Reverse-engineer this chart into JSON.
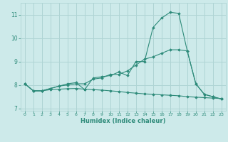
{
  "xlabel": "Humidex (Indice chaleur)",
  "x_values": [
    0,
    1,
    2,
    3,
    4,
    5,
    6,
    7,
    8,
    9,
    10,
    11,
    12,
    13,
    14,
    15,
    16,
    17,
    18,
    19,
    20,
    21,
    22,
    23
  ],
  "line1": [
    8.05,
    7.75,
    7.75,
    7.85,
    7.95,
    8.05,
    8.1,
    7.8,
    8.3,
    8.35,
    8.4,
    8.55,
    8.4,
    9.0,
    9.0,
    10.45,
    10.85,
    11.1,
    11.05,
    9.45,
    8.05,
    7.6,
    7.5,
    7.4
  ],
  "line2": [
    8.05,
    7.75,
    7.75,
    7.85,
    7.95,
    8.0,
    8.05,
    8.05,
    8.25,
    8.3,
    8.45,
    8.45,
    8.6,
    8.85,
    9.1,
    9.2,
    9.35,
    9.5,
    9.5,
    9.45,
    8.05,
    7.6,
    7.5,
    7.4
  ],
  "line3": [
    8.05,
    7.75,
    7.75,
    7.8,
    7.82,
    7.84,
    7.85,
    7.82,
    7.8,
    7.78,
    7.75,
    7.72,
    7.68,
    7.65,
    7.62,
    7.6,
    7.58,
    7.56,
    7.54,
    7.5,
    7.48,
    7.46,
    7.44,
    7.42
  ],
  "color": "#2e8b7a",
  "bg_color": "#cdeaea",
  "grid_color": "#afd4d4",
  "ylim": [
    6.9,
    11.5
  ],
  "yticks": [
    7,
    8,
    9,
    10,
    11
  ],
  "xticks": [
    0,
    1,
    2,
    3,
    4,
    5,
    6,
    7,
    8,
    9,
    10,
    11,
    12,
    13,
    14,
    15,
    16,
    17,
    18,
    19,
    20,
    21,
    22,
    23
  ]
}
